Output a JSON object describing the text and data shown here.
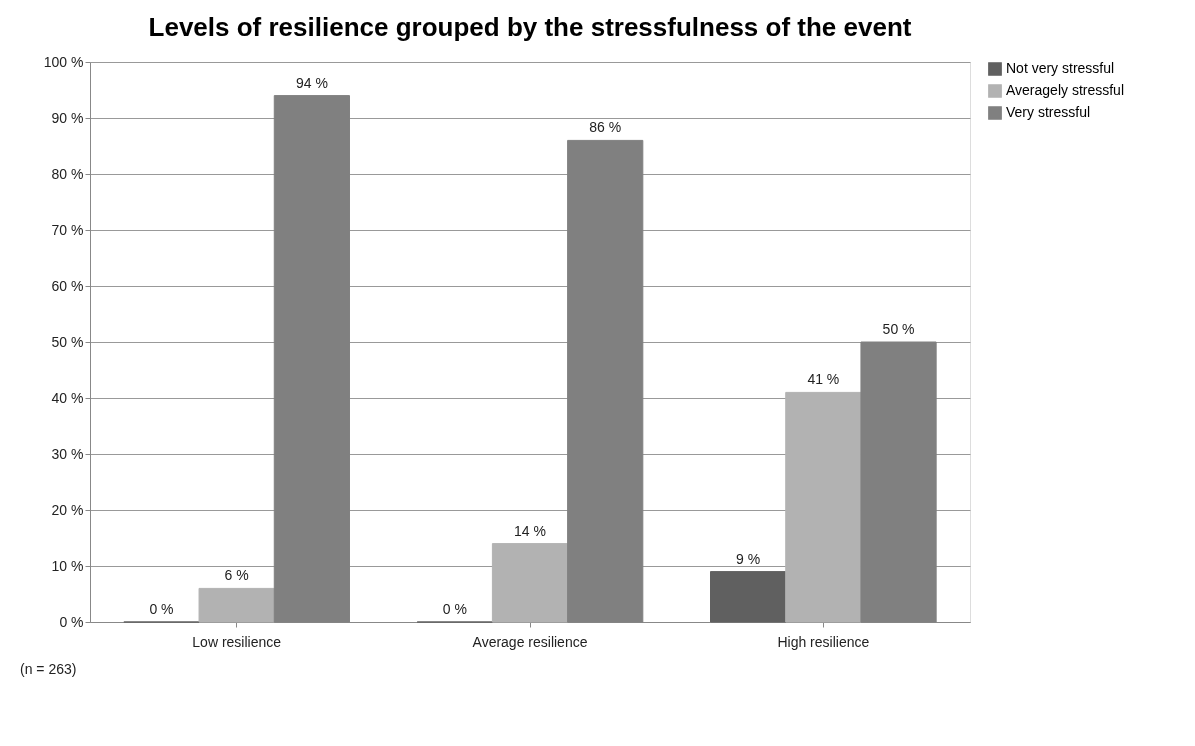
{
  "chart_data": {
    "type": "bar",
    "title": "Levels of resilience grouped by the stressfulness of the event",
    "categories": [
      "Low resilience",
      "Average resilience",
      "High resilience"
    ],
    "series": [
      {
        "name": "Not very stressful",
        "color": "#606060",
        "values": [
          0,
          0,
          9
        ],
        "value_labels": [
          "0 %",
          "0 %",
          "9 %"
        ]
      },
      {
        "name": "Averagely stressful",
        "color": "#b2b2b2",
        "values": [
          6,
          14,
          41
        ],
        "value_labels": [
          "6 %",
          "14 %",
          "41 %"
        ]
      },
      {
        "name": "Very stressful",
        "color": "#808080",
        "values": [
          94,
          86,
          50
        ],
        "value_labels": [
          "94 %",
          "86 %",
          "50 %"
        ]
      }
    ],
    "ylim": [
      0,
      100
    ],
    "yticks": [
      {
        "value": 0,
        "label": "0 %"
      },
      {
        "value": 10,
        "label": "10 %"
      },
      {
        "value": 20,
        "label": "20 %"
      },
      {
        "value": 30,
        "label": "30 %"
      },
      {
        "value": 40,
        "label": "40 %"
      },
      {
        "value": 50,
        "label": "50 %"
      },
      {
        "value": 60,
        "label": "60 %"
      },
      {
        "value": 70,
        "label": "70 %"
      },
      {
        "value": 80,
        "label": "80 %"
      },
      {
        "value": 90,
        "label": "90 %"
      },
      {
        "value": 100,
        "label": "100 %"
      }
    ],
    "grid": "y",
    "legend": "right",
    "annotations": [
      "(n = 263)"
    ]
  }
}
